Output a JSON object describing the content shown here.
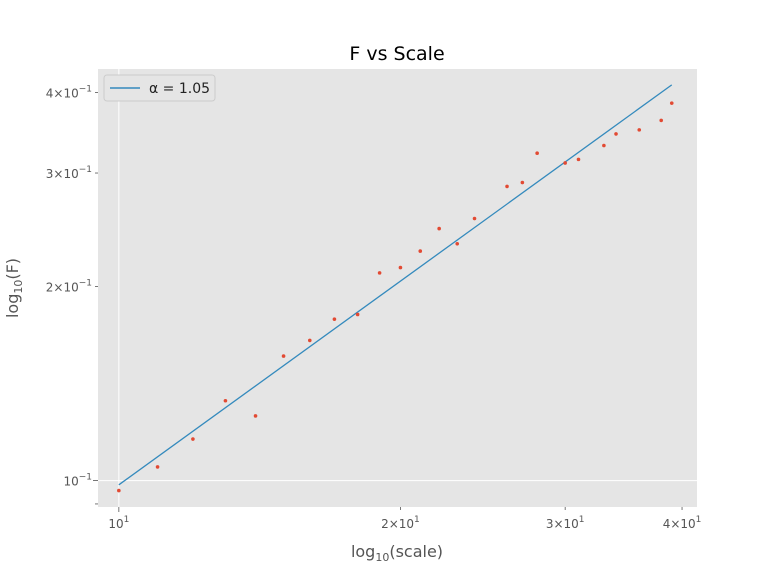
{
  "chart_data": {
    "type": "scatter",
    "title": "F vs Scale",
    "xscale": "log",
    "yscale": "log",
    "xlim": [
      9.5,
      41.5
    ],
    "ylim": [
      0.091,
      0.435
    ],
    "x_ticks": [
      {
        "value": 10,
        "label": "10^1",
        "base": "10",
        "exp": "1"
      },
      {
        "value": 20,
        "label": "2×10^1",
        "base": "2×10",
        "exp": "1"
      },
      {
        "value": 30,
        "label": "3×10^1",
        "base": "3×10",
        "exp": "1"
      },
      {
        "value": 40,
        "label": "4×10^1",
        "base": "4×10",
        "exp": "1"
      }
    ],
    "y_ticks": [
      {
        "value": 0.1,
        "label": "10^-1",
        "base": "10",
        "exp": "−1"
      },
      {
        "value": 0.2,
        "label": "2×10^-1",
        "base": "2×10",
        "exp": "−1"
      },
      {
        "value": 0.3,
        "label": "3×10^-1",
        "base": "3×10",
        "exp": "−1"
      },
      {
        "value": 0.4,
        "label": "4×10^-1",
        "base": "4×10",
        "exp": "−1"
      }
    ],
    "grid": true,
    "legend_position": "top-left",
    "series": [
      {
        "kind": "points",
        "color": "#E24A33",
        "x": [
          10,
          11,
          12,
          13,
          14,
          15,
          16,
          17,
          18,
          19,
          20,
          21,
          22,
          23,
          24,
          26,
          27,
          28,
          30,
          31,
          33,
          34,
          36,
          38,
          39
        ],
        "y": [
          0.0965,
          0.105,
          0.116,
          0.133,
          0.126,
          0.156,
          0.165,
          0.178,
          0.181,
          0.21,
          0.214,
          0.227,
          0.246,
          0.233,
          0.255,
          0.286,
          0.29,
          0.322,
          0.311,
          0.315,
          0.331,
          0.345,
          0.35,
          0.362,
          0.385
        ]
      },
      {
        "kind": "line",
        "name": "α = 1.05",
        "color": "#348ABD",
        "x": [
          10,
          39
        ],
        "y": [
          0.0985,
          0.411
        ]
      }
    ]
  }
}
